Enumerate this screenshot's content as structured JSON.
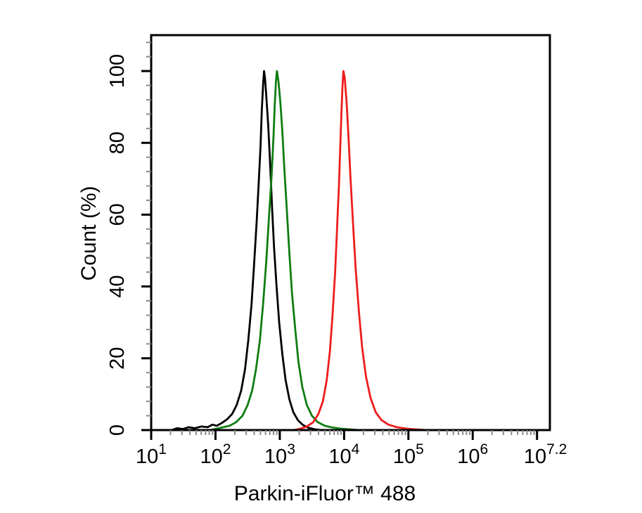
{
  "figure": {
    "background": "#ffffff"
  },
  "chart_data": {
    "type": "line",
    "chart_kind": "flow-cytometry-histogram",
    "title": "",
    "xlabel": "Parkin-iFluor™ 488",
    "ylabel": "Count  (%)",
    "grid": false,
    "legend": "none",
    "x_axis": {
      "scale": "log10",
      "min_log": 1,
      "max_log": 7.2,
      "major_tick_logs": [
        1,
        2,
        3,
        4,
        5,
        6,
        7
      ],
      "minor_tick_color": "#8a8a8a",
      "tick_labels": [
        {
          "base": "10",
          "exp": "1",
          "log": 1
        },
        {
          "base": "10",
          "exp": "2",
          "log": 2
        },
        {
          "base": "10",
          "exp": "3",
          "log": 3
        },
        {
          "base": "10",
          "exp": "4",
          "log": 4
        },
        {
          "base": "10",
          "exp": "5",
          "log": 5
        },
        {
          "base": "10",
          "exp": "6",
          "log": 6
        },
        {
          "base": "10",
          "exp": "7.2",
          "log": 7.13
        }
      ]
    },
    "y_axis": {
      "min": 0,
      "max": 110,
      "major_ticks": [
        0,
        20,
        40,
        60,
        80,
        100
      ],
      "minor_step": 4,
      "minor_tick_color": "#8a8a8a"
    },
    "series": [
      {
        "name": "black",
        "color": "#000000",
        "peak_log10_x": 2.755,
        "peak_pct": 100,
        "points": [
          [
            1.32,
            0
          ],
          [
            1.4,
            0.5
          ],
          [
            1.5,
            0.3
          ],
          [
            1.58,
            0.8
          ],
          [
            1.68,
            0.5
          ],
          [
            1.78,
            1.0
          ],
          [
            1.88,
            0.8
          ],
          [
            1.95,
            1.5
          ],
          [
            2.02,
            1.2
          ],
          [
            2.1,
            2.0
          ],
          [
            2.18,
            3.0
          ],
          [
            2.26,
            4.5
          ],
          [
            2.33,
            7
          ],
          [
            2.4,
            11
          ],
          [
            2.46,
            17
          ],
          [
            2.51,
            25
          ],
          [
            2.56,
            35
          ],
          [
            2.6,
            46
          ],
          [
            2.64,
            58
          ],
          [
            2.67,
            68
          ],
          [
            2.7,
            79
          ],
          [
            2.72,
            89
          ],
          [
            2.74,
            96
          ],
          [
            2.755,
            100
          ],
          [
            2.77,
            98
          ],
          [
            2.79,
            93
          ],
          [
            2.82,
            85
          ],
          [
            2.85,
            74
          ],
          [
            2.88,
            62
          ],
          [
            2.91,
            51
          ],
          [
            2.95,
            40
          ],
          [
            2.99,
            30
          ],
          [
            3.04,
            21
          ],
          [
            3.09,
            14
          ],
          [
            3.15,
            8.5
          ],
          [
            3.21,
            5
          ],
          [
            3.28,
            2.8
          ],
          [
            3.36,
            1.4
          ],
          [
            3.45,
            0.6
          ],
          [
            3.55,
            0.2
          ],
          [
            3.65,
            0
          ]
        ]
      },
      {
        "name": "green",
        "color": "#0e7d12",
        "peak_log10_x": 2.955,
        "peak_pct": 100,
        "points": [
          [
            1.92,
            0
          ],
          [
            2.02,
            0.4
          ],
          [
            2.12,
            0.8
          ],
          [
            2.22,
            1.2
          ],
          [
            2.32,
            2.2
          ],
          [
            2.42,
            4
          ],
          [
            2.5,
            7
          ],
          [
            2.57,
            11
          ],
          [
            2.63,
            17
          ],
          [
            2.69,
            25
          ],
          [
            2.74,
            35
          ],
          [
            2.79,
            47
          ],
          [
            2.83,
            59
          ],
          [
            2.87,
            70
          ],
          [
            2.9,
            81
          ],
          [
            2.92,
            90
          ],
          [
            2.94,
            97
          ],
          [
            2.955,
            100
          ],
          [
            2.98,
            97
          ],
          [
            3.01,
            91
          ],
          [
            3.04,
            83
          ],
          [
            3.07,
            73
          ],
          [
            3.11,
            61
          ],
          [
            3.15,
            49
          ],
          [
            3.19,
            38
          ],
          [
            3.24,
            28
          ],
          [
            3.29,
            19
          ],
          [
            3.35,
            12
          ],
          [
            3.42,
            7
          ],
          [
            3.5,
            4
          ],
          [
            3.59,
            2.2
          ],
          [
            3.7,
            1.2
          ],
          [
            3.82,
            0.7
          ],
          [
            3.95,
            0.4
          ],
          [
            4.1,
            0.2
          ],
          [
            4.22,
            0
          ]
        ]
      },
      {
        "name": "red",
        "color": "#ed1d1d",
        "peak_log10_x": 3.99,
        "peak_pct": 100,
        "points": [
          [
            3.22,
            0
          ],
          [
            3.32,
            0.4
          ],
          [
            3.42,
            1.0
          ],
          [
            3.52,
            2.2
          ],
          [
            3.6,
            4.5
          ],
          [
            3.67,
            8
          ],
          [
            3.73,
            14
          ],
          [
            3.78,
            22
          ],
          [
            3.82,
            32
          ],
          [
            3.86,
            44
          ],
          [
            3.89,
            56
          ],
          [
            3.92,
            68
          ],
          [
            3.94,
            79
          ],
          [
            3.96,
            89
          ],
          [
            3.975,
            96
          ],
          [
            3.99,
            100
          ],
          [
            4.01,
            98
          ],
          [
            4.04,
            91
          ],
          [
            4.07,
            81
          ],
          [
            4.1,
            70
          ],
          [
            4.14,
            57
          ],
          [
            4.18,
            45
          ],
          [
            4.23,
            33
          ],
          [
            4.28,
            23
          ],
          [
            4.34,
            15
          ],
          [
            4.41,
            9
          ],
          [
            4.49,
            5
          ],
          [
            4.58,
            2.8
          ],
          [
            4.69,
            1.5
          ],
          [
            4.82,
            0.8
          ],
          [
            4.97,
            0.4
          ],
          [
            5.12,
            0.2
          ],
          [
            5.28,
            0
          ]
        ]
      }
    ]
  }
}
